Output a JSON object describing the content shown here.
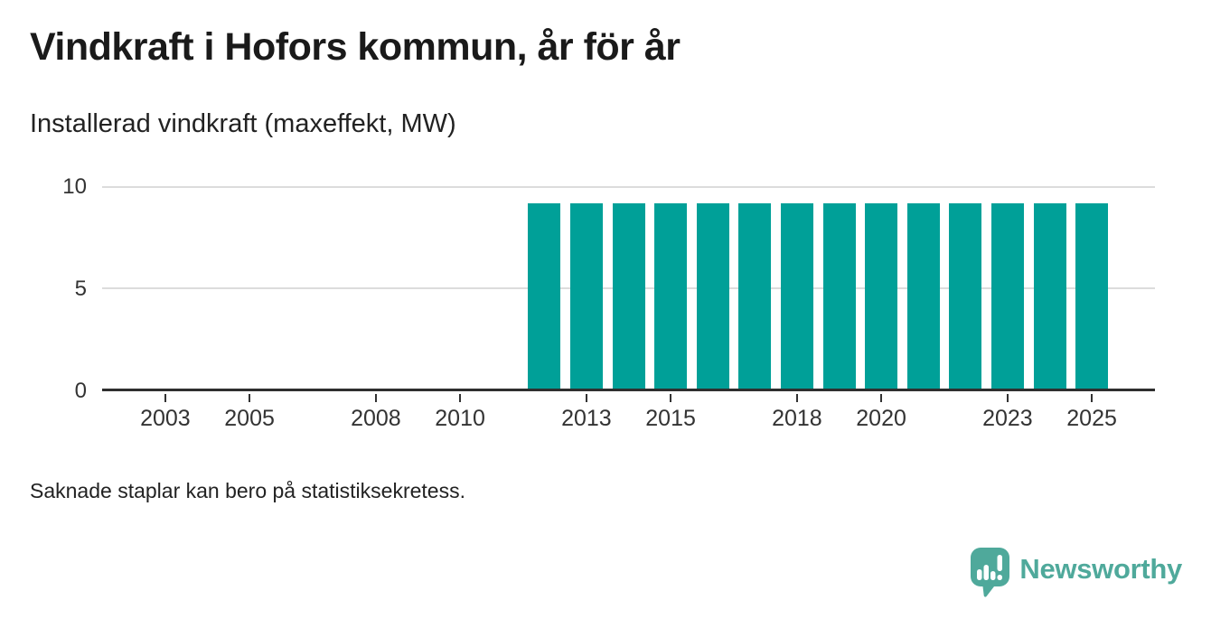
{
  "header": {
    "title": "Vindkraft i Hofors kommun, år för år",
    "subtitle": "Installerad vindkraft (maxeffekt, MW)"
  },
  "footnote": "Saknade staplar kan bero på statistiksekretess.",
  "branding": {
    "name": "Newsworthy",
    "color": "#4fa99b",
    "icon": "speech-bubble-bar-chart-exclamation"
  },
  "chart_data": {
    "type": "bar",
    "title": "Vindkraft i Hofors kommun, år för år",
    "subtitle": "Installerad vindkraft (maxeffekt, MW)",
    "xlabel": "",
    "ylabel": "Installerad vindkraft (maxeffekt, MW)",
    "x_domain": [
      2002,
      2026
    ],
    "x_ticks": [
      2003,
      2005,
      2008,
      2010,
      2013,
      2015,
      2018,
      2020,
      2023,
      2025
    ],
    "ylim": [
      0,
      10
    ],
    "y_ticks": [
      0,
      5,
      10
    ],
    "grid": "horizontal",
    "legend_position": "none",
    "bar_color": "#00a098",
    "series": [
      {
        "name": "Installerad vindkraft (maxeffekt, MW)",
        "points": [
          {
            "year": 2012,
            "value": 9.2
          },
          {
            "year": 2013,
            "value": 9.2
          },
          {
            "year": 2014,
            "value": 9.2
          },
          {
            "year": 2015,
            "value": 9.2
          },
          {
            "year": 2016,
            "value": 9.2
          },
          {
            "year": 2017,
            "value": 9.2
          },
          {
            "year": 2018,
            "value": 9.2
          },
          {
            "year": 2019,
            "value": 9.2
          },
          {
            "year": 2020,
            "value": 9.2
          },
          {
            "year": 2021,
            "value": 9.2
          },
          {
            "year": 2022,
            "value": 9.2
          },
          {
            "year": 2023,
            "value": 9.2
          },
          {
            "year": 2024,
            "value": 9.2
          },
          {
            "year": 2025,
            "value": 9.2
          }
        ]
      }
    ]
  }
}
